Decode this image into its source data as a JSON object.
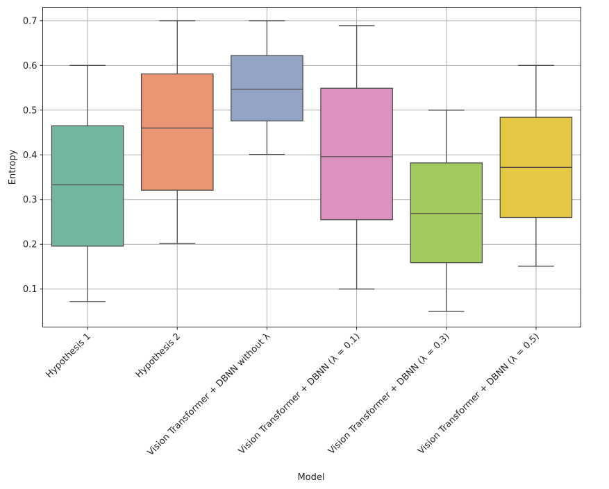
{
  "chart_data": {
    "type": "box",
    "title": "",
    "xlabel": "Model",
    "ylabel": "Entropy",
    "ylim": [
      0.015,
      0.73
    ],
    "yticks": [
      0.1,
      0.2,
      0.3,
      0.4,
      0.5,
      0.6,
      0.7
    ],
    "ytick_labels": [
      "0.1",
      "0.2",
      "0.3",
      "0.4",
      "0.5",
      "0.6",
      "0.7"
    ],
    "grid": true,
    "categories": [
      "Hypothesis 1",
      "Hypothesis 2",
      "Vision Transformer + DBNN without λ",
      "Vision Transformer + DBNN (λ = 0.1)",
      "Vision Transformer + DBNN (λ = 0.3)",
      "Vision Transformer + DBNN (λ = 0.5)"
    ],
    "boxes": [
      {
        "whisker_low": 0.072,
        "q1": 0.196,
        "median": 0.333,
        "q3": 0.465,
        "whisker_high": 0.6,
        "color": "#73b6a1"
      },
      {
        "whisker_low": 0.202,
        "q1": 0.321,
        "median": 0.46,
        "q3": 0.581,
        "whisker_high": 0.7,
        "color": "#ea9674"
      },
      {
        "whisker_low": 0.401,
        "q1": 0.476,
        "median": 0.547,
        "q3": 0.622,
        "whisker_high": 0.7,
        "color": "#93a4c6"
      },
      {
        "whisker_low": 0.1,
        "q1": 0.255,
        "median": 0.396,
        "q3": 0.549,
        "whisker_high": 0.689,
        "color": "#dc93c0"
      },
      {
        "whisker_low": 0.05,
        "q1": 0.159,
        "median": 0.269,
        "q3": 0.382,
        "whisker_high": 0.5,
        "color": "#a3ca5f"
      },
      {
        "whisker_low": 0.151,
        "q1": 0.26,
        "median": 0.372,
        "q3": 0.484,
        "whisker_high": 0.6,
        "color": "#e5c945"
      }
    ]
  }
}
